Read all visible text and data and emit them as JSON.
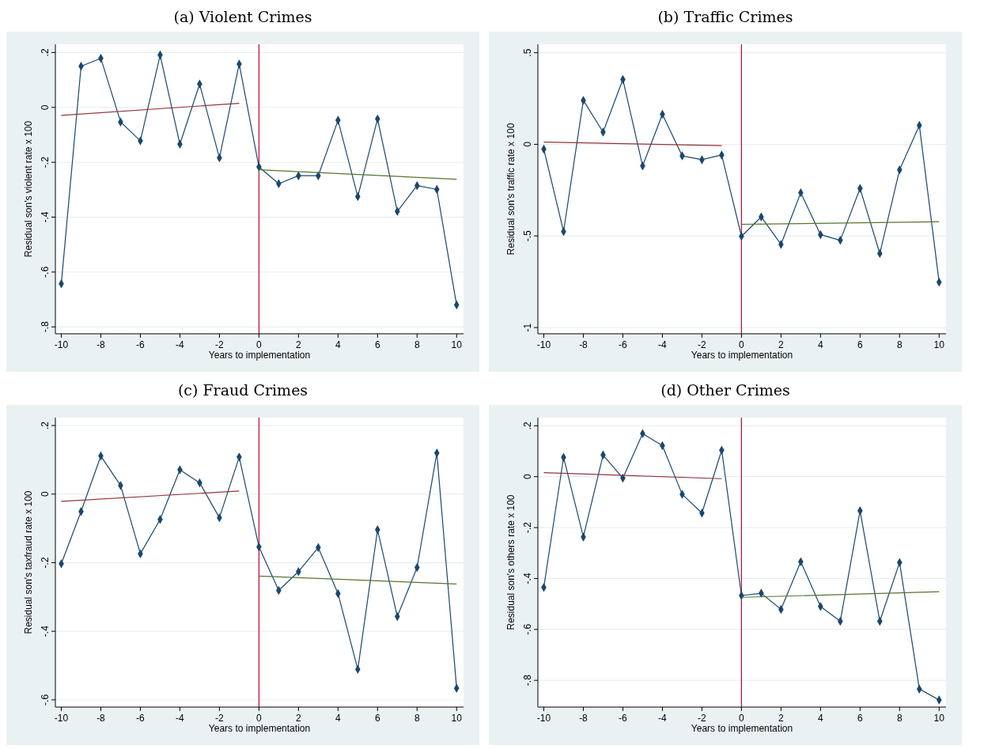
{
  "chart_data": [
    {
      "type": "line",
      "title": "(a) Violent Crimes",
      "xlabel": "Years to implementation",
      "ylabel": "Residual son's violent rate x 100",
      "xlim": [
        -10.3,
        10.35
      ],
      "xticks": [
        -10,
        -8,
        -6,
        -4,
        -2,
        0,
        2,
        4,
        6,
        8,
        10
      ],
      "ylim": [
        -0.825,
        0.23
      ],
      "yticks": [
        {
          "value": -0.8,
          "label": "-.8"
        },
        {
          "value": -0.6,
          "label": "-.6"
        },
        {
          "value": -0.4,
          "label": "-.4"
        },
        {
          "value": -0.2,
          "label": "-.2"
        },
        {
          "value": 0,
          "label": "0"
        },
        {
          "value": 0.2,
          "label": ".2"
        }
      ],
      "grid": "y",
      "ref_lines": [
        {
          "axis": "x",
          "value": 0,
          "color": "#c10534"
        }
      ],
      "series": [
        {
          "color": "#1a476f",
          "marker": "diamond",
          "x": [
            -10,
            -9,
            -8,
            -7,
            -6,
            -5,
            -4,
            -3,
            -2,
            -1,
            0,
            1,
            2,
            3,
            4,
            5,
            6,
            7,
            8,
            9,
            10
          ],
          "values": [
            -0.643,
            0.15,
            0.179,
            -0.053,
            -0.122,
            0.191,
            -0.134,
            0.085,
            -0.184,
            0.158,
            -0.217,
            -0.278,
            -0.249,
            -0.249,
            -0.047,
            -0.325,
            -0.042,
            -0.379,
            -0.285,
            -0.299,
            -0.72
          ]
        },
        {
          "color": "#90353b",
          "marker": "none",
          "x": [
            -10,
            -1
          ],
          "values": [
            -0.029,
            0.015
          ]
        },
        {
          "color": "#55752f",
          "marker": "none",
          "x": [
            0,
            10
          ],
          "values": [
            -0.227,
            -0.262
          ]
        }
      ]
    },
    {
      "type": "line",
      "title": "(b) Traffic Crimes",
      "xlabel": "Years to implementation",
      "ylabel": "Residual son's traffic rate x 100",
      "xlim": [
        -10.3,
        10.35
      ],
      "xticks": [
        -10,
        -8,
        -6,
        -4,
        -2,
        0,
        2,
        4,
        6,
        8,
        10
      ],
      "ylim": [
        -1.034,
        0.546
      ],
      "yticks": [
        {
          "value": -1,
          "label": "-1"
        },
        {
          "value": -0.5,
          "label": "-.5"
        },
        {
          "value": 0,
          "label": "0"
        },
        {
          "value": 0.5,
          "label": ".5"
        }
      ],
      "grid": "y",
      "ref_lines": [
        {
          "axis": "x",
          "value": 0,
          "color": "#c10534"
        }
      ],
      "series": [
        {
          "color": "#1a476f",
          "marker": "diamond",
          "x": [
            -10,
            -9,
            -8,
            -7,
            -6,
            -5,
            -4,
            -3,
            -2,
            -1,
            0,
            1,
            2,
            3,
            4,
            5,
            6,
            7,
            8,
            9,
            10
          ],
          "values": [
            -0.026,
            -0.476,
            0.24,
            0.067,
            0.354,
            -0.118,
            0.164,
            -0.063,
            -0.084,
            -0.058,
            -0.502,
            -0.396,
            -0.546,
            -0.264,
            -0.493,
            -0.524,
            -0.241,
            -0.596,
            -0.139,
            0.104,
            -0.752
          ]
        },
        {
          "color": "#90353b",
          "marker": "none",
          "x": [
            -10,
            -1
          ],
          "values": [
            0.012,
            -0.007
          ]
        },
        {
          "color": "#55752f",
          "marker": "none",
          "x": [
            0,
            10
          ],
          "values": [
            -0.437,
            -0.423
          ]
        }
      ]
    },
    {
      "type": "line",
      "title": "(c) Fraud Crimes",
      "xlabel": "Years to implementation",
      "ylabel": "Residual son's taxfraud rate x 100",
      "xlim": [
        -10.3,
        10.35
      ],
      "xticks": [
        -10,
        -8,
        -6,
        -4,
        -2,
        0,
        2,
        4,
        6,
        8,
        10
      ],
      "ylim": [
        -0.621,
        0.223
      ],
      "yticks": [
        {
          "value": -0.6,
          "label": "-.6"
        },
        {
          "value": -0.4,
          "label": "-.4"
        },
        {
          "value": -0.2,
          "label": "-.2"
        },
        {
          "value": 0,
          "label": "0"
        },
        {
          "value": 0.2,
          "label": ".2"
        }
      ],
      "grid": "y",
      "ref_lines": [
        {
          "axis": "x",
          "value": 0,
          "color": "#c10534"
        }
      ],
      "series": [
        {
          "color": "#1a476f",
          "marker": "diamond",
          "x": [
            -10,
            -9,
            -8,
            -7,
            -6,
            -5,
            -4,
            -3,
            -2,
            -1,
            0,
            1,
            2,
            3,
            4,
            5,
            6,
            7,
            8,
            9,
            10
          ],
          "values": [
            -0.203,
            -0.051,
            0.111,
            0.025,
            -0.174,
            -0.074,
            0.071,
            0.033,
            -0.069,
            0.108,
            -0.154,
            -0.281,
            -0.226,
            -0.156,
            -0.29,
            -0.511,
            -0.104,
            -0.357,
            -0.214,
            0.12,
            -0.566
          ]
        },
        {
          "color": "#90353b",
          "marker": "none",
          "x": [
            -10,
            -1
          ],
          "values": [
            -0.021,
            0.009
          ]
        },
        {
          "color": "#55752f",
          "marker": "none",
          "x": [
            0,
            10
          ],
          "values": [
            -0.239,
            -0.262
          ]
        }
      ]
    },
    {
      "type": "line",
      "title": "(d) Other Crimes",
      "xlabel": "Years to implementation",
      "ylabel": "Residual son's others rate x 100",
      "xlim": [
        -10.3,
        10.35
      ],
      "xticks": [
        -10,
        -8,
        -6,
        -4,
        -2,
        0,
        2,
        4,
        6,
        8,
        10
      ],
      "ylim": [
        -0.905,
        0.232
      ],
      "yticks": [
        {
          "value": -0.8,
          "label": "-.8"
        },
        {
          "value": -0.6,
          "label": "-.6"
        },
        {
          "value": -0.4,
          "label": "-.4"
        },
        {
          "value": -0.2,
          "label": "-.2"
        },
        {
          "value": 0,
          "label": "0"
        },
        {
          "value": 0.2,
          "label": ".2"
        }
      ],
      "grid": "y",
      "ref_lines": [
        {
          "axis": "x",
          "value": 0,
          "color": "#c10534"
        }
      ],
      "series": [
        {
          "color": "#1a476f",
          "marker": "diamond",
          "x": [
            -10,
            -9,
            -8,
            -7,
            -6,
            -5,
            -4,
            -3,
            -2,
            -1,
            0,
            1,
            2,
            3,
            4,
            5,
            6,
            7,
            8,
            9,
            10
          ],
          "values": [
            -0.435,
            0.076,
            -0.237,
            0.085,
            -0.006,
            0.169,
            0.122,
            -0.069,
            -0.143,
            0.104,
            -0.467,
            -0.458,
            -0.521,
            -0.334,
            -0.51,
            -0.568,
            -0.134,
            -0.568,
            -0.337,
            -0.834,
            -0.877
          ]
        },
        {
          "color": "#90353b",
          "marker": "none",
          "x": [
            -10,
            -1
          ],
          "values": [
            0.016,
            -0.008
          ]
        },
        {
          "color": "#55752f",
          "marker": "none",
          "x": [
            0,
            10
          ],
          "values": [
            -0.474,
            -0.452
          ]
        }
      ]
    }
  ]
}
